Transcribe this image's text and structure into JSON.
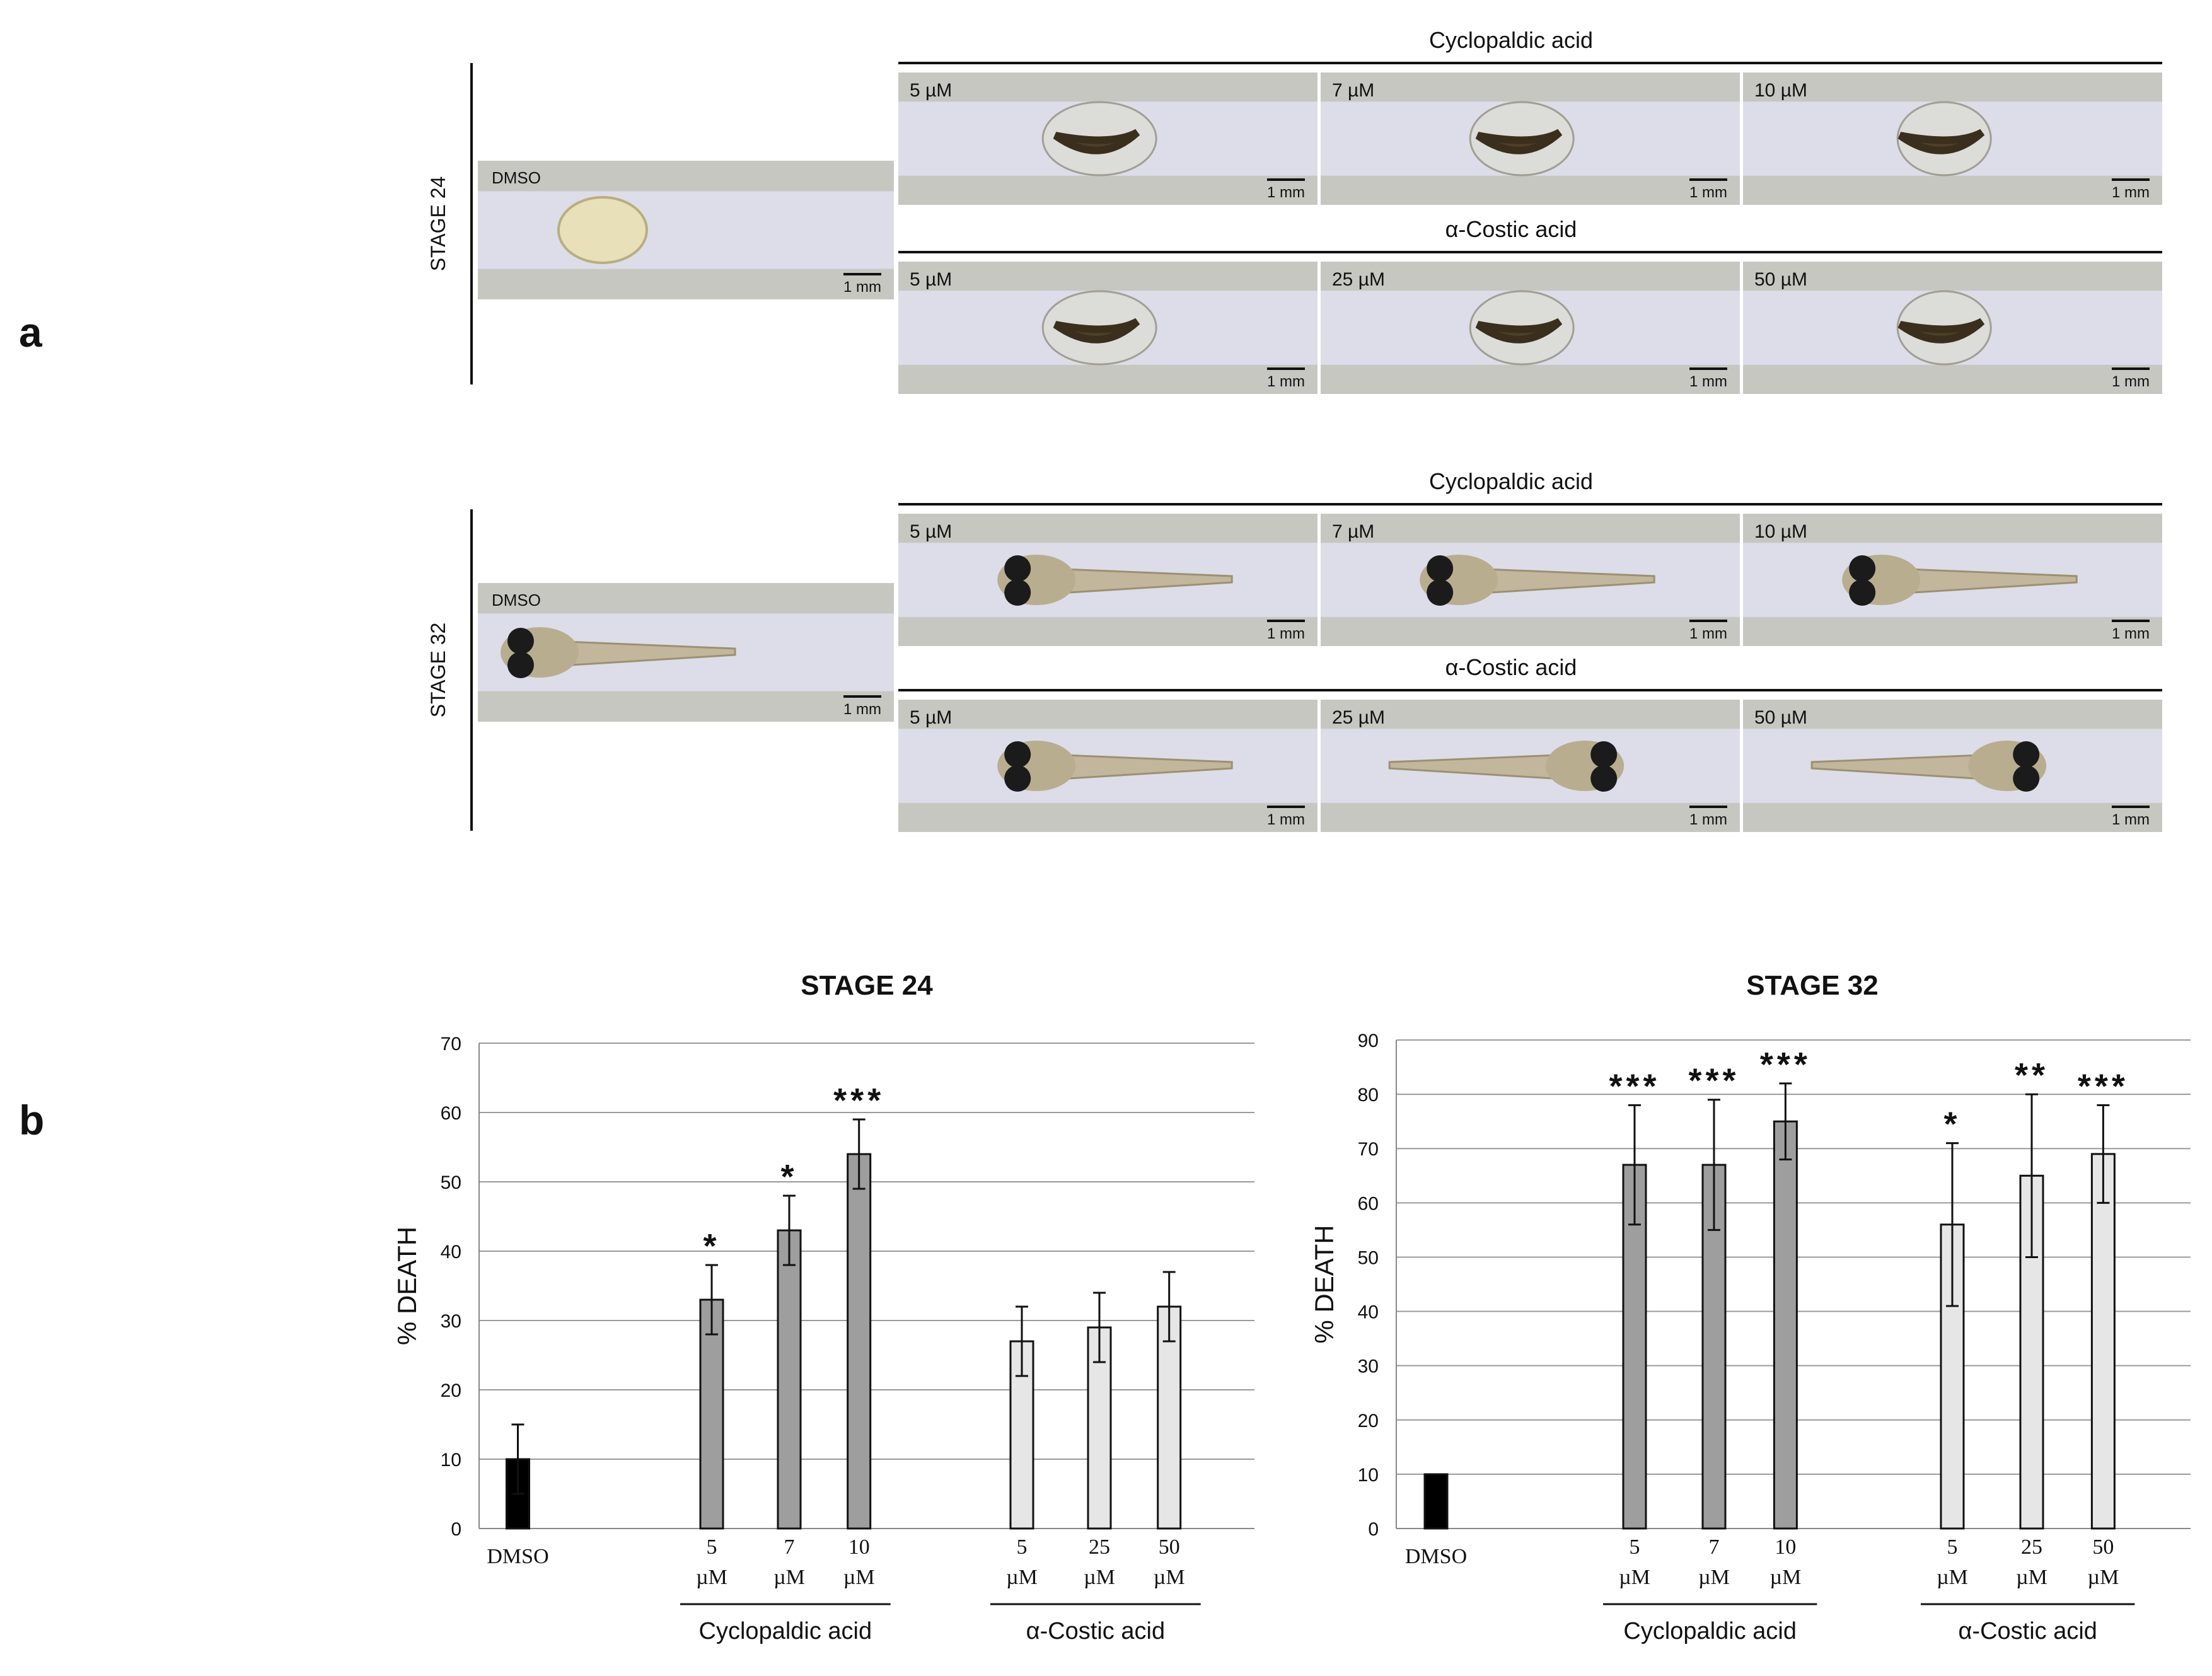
{
  "panel_a": {
    "label": "a",
    "stages": [
      {
        "name": "STAGE 24",
        "control": {
          "label": "DMSO",
          "scale": "1 mm"
        },
        "groups": [
          {
            "compound": "Cyclopaldic acid",
            "images": [
              {
                "conc": "5 µM",
                "scale": "1 mm"
              },
              {
                "conc": "7 µM",
                "scale": "1 mm"
              },
              {
                "conc": "10 µM",
                "scale": "1 mm"
              }
            ]
          },
          {
            "compound": "α-Costic acid",
            "images": [
              {
                "conc": "5 µM",
                "scale": "1 mm"
              },
              {
                "conc": "25 µM",
                "scale": "1 mm"
              },
              {
                "conc": "50 µM",
                "scale": "1 mm"
              }
            ]
          }
        ]
      },
      {
        "name": "STAGE 32",
        "control": {
          "label": "DMSO",
          "scale": "1 mm"
        },
        "groups": [
          {
            "compound": "Cyclopaldic acid",
            "images": [
              {
                "conc": "5 µM",
                "scale": "1 mm"
              },
              {
                "conc": "7 µM",
                "scale": "1 mm"
              },
              {
                "conc": "10 µM",
                "scale": "1 mm"
              }
            ]
          },
          {
            "compound": "α-Costic acid",
            "images": [
              {
                "conc": "5 µM",
                "scale": "1 mm"
              },
              {
                "conc": "25 µM",
                "scale": "1 mm"
              },
              {
                "conc": "50 µM",
                "scale": "1 mm"
              }
            ]
          }
        ]
      }
    ]
  },
  "panel_b": {
    "label": "b"
  },
  "colors": {
    "dmso": "#000000",
    "cyclopaldic": "#9e9e9e",
    "costic": "#e6e6e6",
    "grid": "#9a9a9a"
  },
  "chart_data": [
    {
      "type": "bar",
      "title": "STAGE 24",
      "ylabel": "% DEATH",
      "ylim": [
        0,
        70
      ],
      "yticks": [
        0,
        10,
        20,
        30,
        40,
        50,
        60,
        70
      ],
      "grid": true,
      "categories": [
        {
          "line1": "DMSO",
          "line2": "",
          "group": "control",
          "value": 10,
          "error": 5,
          "sig": ""
        },
        {
          "line1": "5",
          "line2": "µM",
          "group": "cyclopaldic",
          "value": 33,
          "error": 5,
          "sig": "*"
        },
        {
          "line1": "7",
          "line2": "µM",
          "group": "cyclopaldic",
          "value": 43,
          "error": 5,
          "sig": "*"
        },
        {
          "line1": "10",
          "line2": "µM",
          "group": "cyclopaldic",
          "value": 54,
          "error": 5,
          "sig": "***"
        },
        {
          "line1": "5",
          "line2": "µM",
          "group": "costic",
          "value": 27,
          "error": 5,
          "sig": ""
        },
        {
          "line1": "25",
          "line2": "µM",
          "group": "costic",
          "value": 29,
          "error": 5,
          "sig": ""
        },
        {
          "line1": "50",
          "line2": "µM",
          "group": "costic",
          "value": 32,
          "error": 5,
          "sig": ""
        }
      ],
      "group_labels": {
        "cyclopaldic": "Cyclopaldic acid",
        "costic": "α-Costic acid"
      }
    },
    {
      "type": "bar",
      "title": "STAGE 32",
      "ylabel": "% DEATH",
      "ylim": [
        0,
        90
      ],
      "yticks": [
        0,
        10,
        20,
        30,
        40,
        50,
        60,
        70,
        80,
        90
      ],
      "grid": true,
      "categories": [
        {
          "line1": "DMSO",
          "line2": "",
          "group": "control",
          "value": 10,
          "error": 0,
          "sig": ""
        },
        {
          "line1": "5",
          "line2": "µM",
          "group": "cyclopaldic",
          "value": 67,
          "error": 11,
          "sig": "***"
        },
        {
          "line1": "7",
          "line2": "µM",
          "group": "cyclopaldic",
          "value": 67,
          "error": 12,
          "sig": "***"
        },
        {
          "line1": "10",
          "line2": "µM",
          "group": "cyclopaldic",
          "value": 75,
          "error": 7,
          "sig": "***"
        },
        {
          "line1": "5",
          "line2": "µM",
          "group": "costic",
          "value": 56,
          "error": 15,
          "sig": "*"
        },
        {
          "line1": "25",
          "line2": "µM",
          "group": "costic",
          "value": 65,
          "error": 15,
          "sig": "**"
        },
        {
          "line1": "50",
          "line2": "µM",
          "group": "costic",
          "value": 69,
          "error": 9,
          "sig": "***"
        }
      ],
      "group_labels": {
        "cyclopaldic": "Cyclopaldic acid",
        "costic": "α-Costic acid"
      }
    }
  ]
}
